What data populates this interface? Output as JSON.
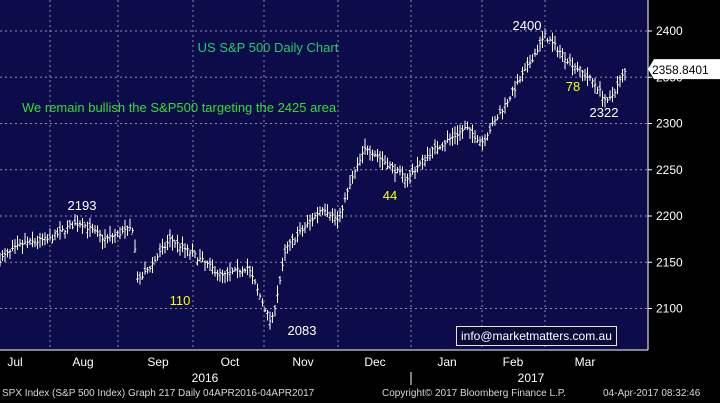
{
  "chart_data": {
    "type": "ohlc",
    "title": "US S&P 500 Daily Chart",
    "subtitle": "We remain bullish the S&P500 targeting the 2425 area",
    "y_ticks": [
      2100,
      2150,
      2200,
      2250,
      2300,
      2350,
      2400
    ],
    "ylim": [
      2060,
      2420
    ],
    "months": [
      "Jul",
      "Aug",
      "Sep",
      "Oct",
      "Nov",
      "Dec",
      "Jan",
      "Feb",
      "Mar"
    ],
    "years": [
      "2016",
      "2017"
    ],
    "last_price": "2358.8401",
    "annotations": [
      {
        "text": "2193",
        "color": "#ffffff"
      },
      {
        "text": "110",
        "color": "#ffff00"
      },
      {
        "text": "2083",
        "color": "#ffffff"
      },
      {
        "text": "44",
        "color": "#ffff00"
      },
      {
        "text": "2400",
        "color": "#ffffff"
      },
      {
        "text": "78",
        "color": "#ffff00"
      },
      {
        "text": "2322",
        "color": "#ffffff"
      }
    ],
    "grid": true,
    "colors": {
      "background": "#0c0c4a",
      "grid": "#8a8ab0",
      "bars": "#ffffff",
      "title": "#22cc66",
      "subtitle": "#33dd33",
      "annotation_yellow": "#ffff00"
    },
    "series": [
      {
        "x": "2016-07-01",
        "y": 2153
      },
      {
        "x": "2016-07-15",
        "y": 2170
      },
      {
        "x": "2016-08-01",
        "y": 2175
      },
      {
        "x": "2016-08-10",
        "y": 2189
      },
      {
        "x": "2016-08-15",
        "y": 2193
      },
      {
        "x": "2016-08-26",
        "y": 2175
      },
      {
        "x": "2016-09-07",
        "y": 2187
      },
      {
        "x": "2016-09-09",
        "y": 2128
      },
      {
        "x": "2016-09-22",
        "y": 2175
      },
      {
        "x": "2016-10-03",
        "y": 2155
      },
      {
        "x": "2016-10-14",
        "y": 2135
      },
      {
        "x": "2016-10-25",
        "y": 2145
      },
      {
        "x": "2016-11-03",
        "y": 2090
      },
      {
        "x": "2016-11-04",
        "y": 2083
      },
      {
        "x": "2016-11-10",
        "y": 2165
      },
      {
        "x": "2016-11-25",
        "y": 2210
      },
      {
        "x": "2016-12-01",
        "y": 2195
      },
      {
        "x": "2016-12-07",
        "y": 2240
      },
      {
        "x": "2016-12-13",
        "y": 2275
      },
      {
        "x": "2016-12-30",
        "y": 2240
      },
      {
        "x": "2017-01-10",
        "y": 2270
      },
      {
        "x": "2017-01-25",
        "y": 2295
      },
      {
        "x": "2017-02-01",
        "y": 2280
      },
      {
        "x": "2017-02-10",
        "y": 2315
      },
      {
        "x": "2017-02-21",
        "y": 2360
      },
      {
        "x": "2017-03-01",
        "y": 2395
      },
      {
        "x": "2017-03-10",
        "y": 2370
      },
      {
        "x": "2017-03-21",
        "y": 2345
      },
      {
        "x": "2017-03-27",
        "y": 2322
      },
      {
        "x": "2017-04-04",
        "y": 2359
      }
    ]
  },
  "email_box": "info@marketmatters.com.au",
  "footer": {
    "left": "SPX Index (S&P 500 Index) Graph 217  Daily 04APR2016-04APR2017",
    "center": "Copyright© 2017 Bloomberg Finance L.P.",
    "right": "04-Apr-2017 08:32:46"
  }
}
